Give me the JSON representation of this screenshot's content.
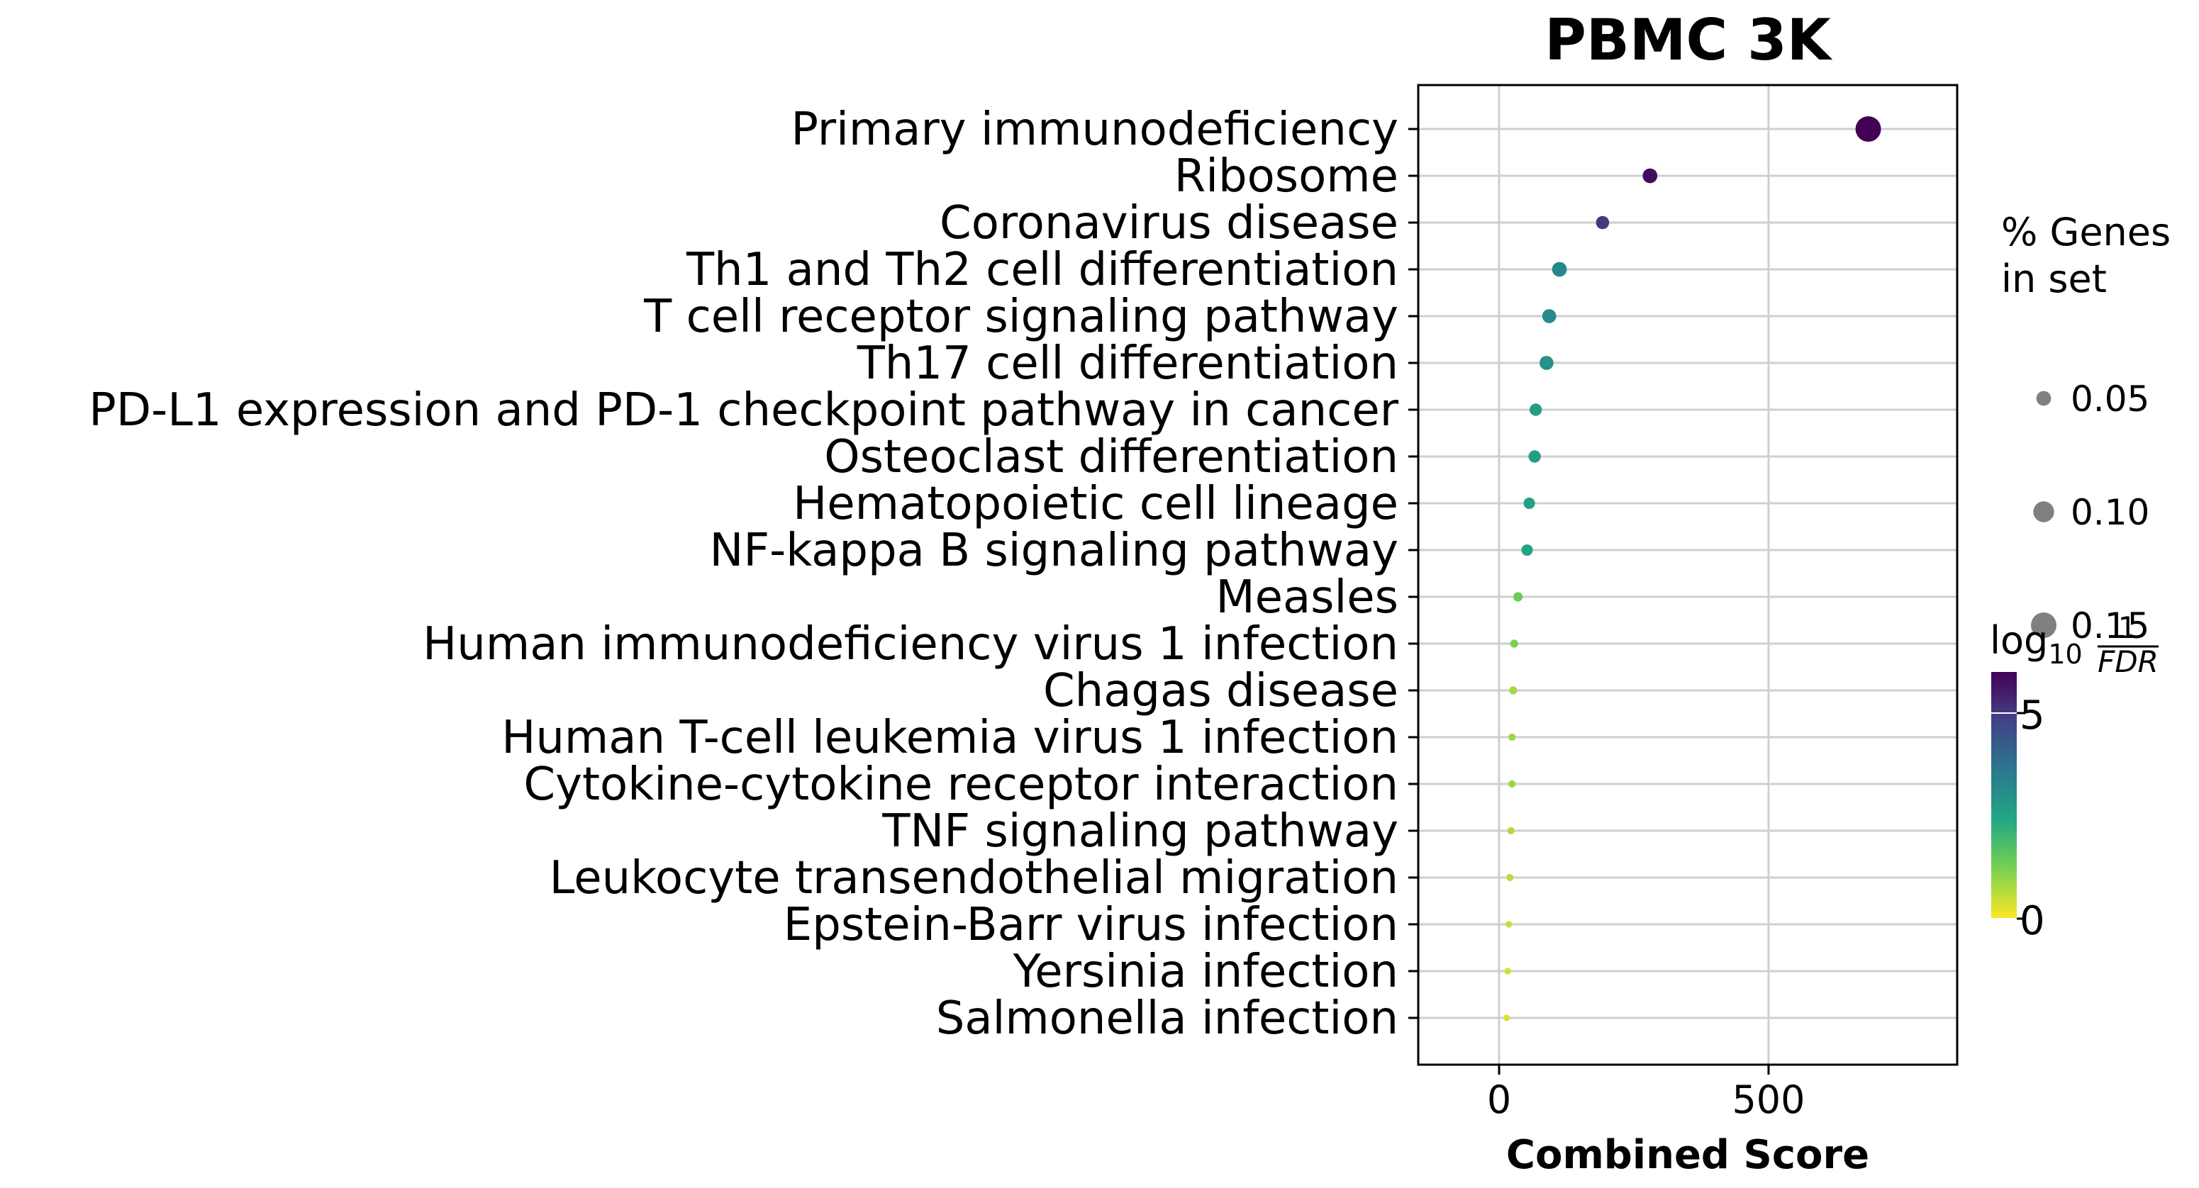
{
  "chart_data": {
    "type": "scatter",
    "title": "PBMC 3K",
    "xlabel": "Combined Score",
    "ylabel": "",
    "xlim": [
      -150,
      850
    ],
    "xticks": [
      0,
      500
    ],
    "grid": true,
    "categories": [
      "Primary immunodeficiency",
      "Ribosome",
      "Coronavirus disease",
      "Th1 and Th2 cell differentiation",
      "T cell receptor signaling pathway",
      "Th17 cell differentiation",
      "PD-L1 expression and PD-1 checkpoint pathway in cancer",
      "Osteoclast differentiation",
      "Hematopoietic cell lineage",
      "NF-kappa B signaling pathway",
      "Measles",
      "Human immunodeficiency virus 1 infection",
      "Chagas disease",
      "Human T-cell leukemia virus 1 infection",
      "Cytokine-cytokine receptor interaction",
      "TNF signaling pathway",
      "Leukocyte transendothelial migration",
      "Epstein-Barr virus infection",
      "Yersinia infection",
      "Salmonella infection"
    ],
    "points": [
      {
        "term": "Primary immunodeficiency",
        "combined_score": 685,
        "pct_genes": 0.15,
        "neg_log10_fdr": 6.0
      },
      {
        "term": "Ribosome",
        "combined_score": 280,
        "pct_genes": 0.05,
        "neg_log10_fdr": 5.8
      },
      {
        "term": "Coronavirus disease",
        "combined_score": 192,
        "pct_genes": 0.04,
        "neg_log10_fdr": 5.0
      },
      {
        "term": "Th1 and Th2 cell differentiation",
        "combined_score": 112,
        "pct_genes": 0.05,
        "neg_log10_fdr": 3.2
      },
      {
        "term": "T cell receptor signaling pathway",
        "combined_score": 93,
        "pct_genes": 0.045,
        "neg_log10_fdr": 3.1
      },
      {
        "term": "Th17 cell differentiation",
        "combined_score": 88,
        "pct_genes": 0.045,
        "neg_log10_fdr": 3.0
      },
      {
        "term": "PD-L1 expression and PD-1 checkpoint pathway in cancer",
        "combined_score": 68,
        "pct_genes": 0.035,
        "neg_log10_fdr": 2.7
      },
      {
        "term": "Osteoclast differentiation",
        "combined_score": 66,
        "pct_genes": 0.035,
        "neg_log10_fdr": 2.7
      },
      {
        "term": "Hematopoietic cell lineage",
        "combined_score": 56,
        "pct_genes": 0.03,
        "neg_log10_fdr": 2.6
      },
      {
        "term": "NF-kappa B signaling pathway",
        "combined_score": 52,
        "pct_genes": 0.03,
        "neg_log10_fdr": 2.5
      },
      {
        "term": "Measles",
        "combined_score": 35,
        "pct_genes": 0.02,
        "neg_log10_fdr": 1.4
      },
      {
        "term": "Human immunodeficiency virus 1 infection",
        "combined_score": 28,
        "pct_genes": 0.015,
        "neg_log10_fdr": 1.2
      },
      {
        "term": "Chagas disease",
        "combined_score": 26,
        "pct_genes": 0.015,
        "neg_log10_fdr": 0.8
      },
      {
        "term": "Human T-cell leukemia virus 1 infection",
        "combined_score": 24,
        "pct_genes": 0.012,
        "neg_log10_fdr": 0.9
      },
      {
        "term": "Cytokine-cytokine receptor interaction",
        "combined_score": 24,
        "pct_genes": 0.012,
        "neg_log10_fdr": 0.9
      },
      {
        "term": "TNF signaling pathway",
        "combined_score": 22,
        "pct_genes": 0.012,
        "neg_log10_fdr": 0.7
      },
      {
        "term": "Leukocyte transendothelial migration",
        "combined_score": 20,
        "pct_genes": 0.012,
        "neg_log10_fdr": 0.6
      },
      {
        "term": "Epstein-Barr virus infection",
        "combined_score": 18,
        "pct_genes": 0.01,
        "neg_log10_fdr": 0.5
      },
      {
        "term": "Yersinia infection",
        "combined_score": 16,
        "pct_genes": 0.01,
        "neg_log10_fdr": 0.4
      },
      {
        "term": "Salmonella infection",
        "combined_score": 14,
        "pct_genes": 0.01,
        "neg_log10_fdr": 0.3
      }
    ],
    "size_legend": {
      "title_line1": "% Genes",
      "title_line2": "in set",
      "labels": [
        "0.05",
        "0.10",
        "0.15"
      ],
      "values": [
        0.05,
        0.1,
        0.15
      ]
    },
    "colorbar": {
      "label_prefix": "log",
      "label_sub": "10",
      "label_num": "1",
      "label_den": "FDR",
      "range": [
        0,
        6
      ],
      "ticks": [
        0,
        5
      ],
      "tick_labels": [
        "0",
        "5"
      ],
      "colormap": "viridis",
      "legend_placement": "right"
    }
  }
}
